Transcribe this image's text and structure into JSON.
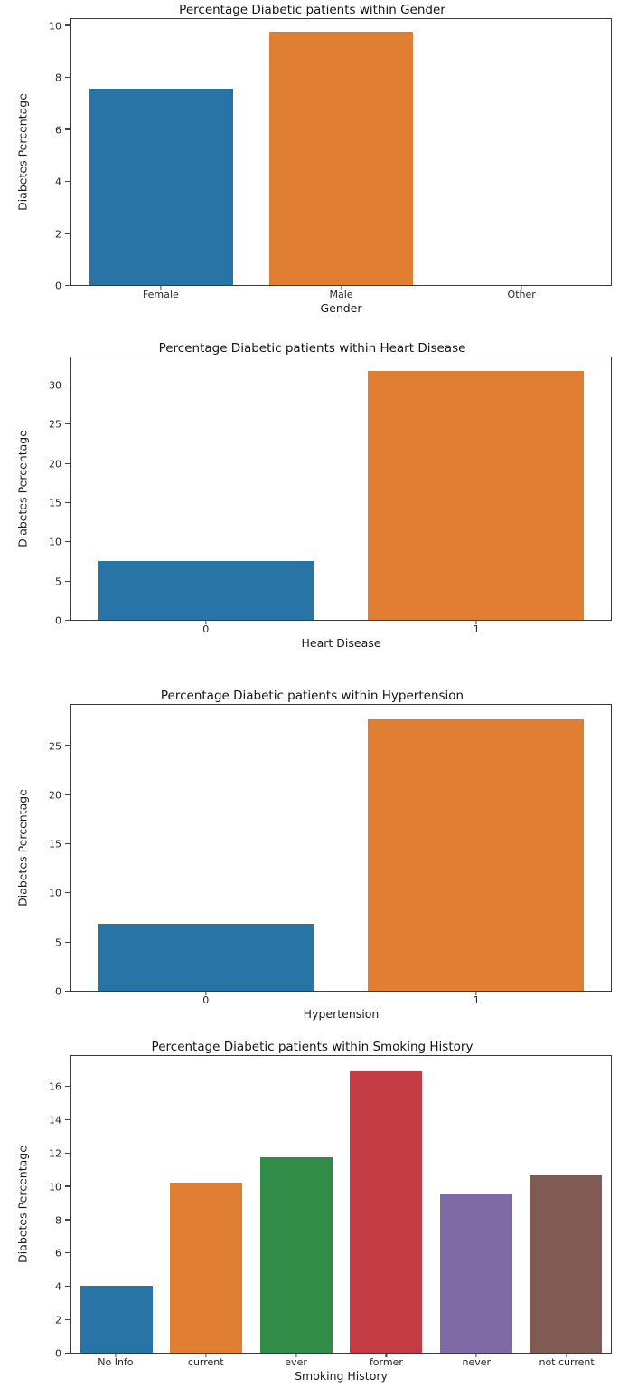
{
  "page": {
    "background": "#ffffff",
    "text_color": "#1c1c1c",
    "axis_color": "#3a3a3a"
  },
  "palette": {
    "blue": "#2874a6",
    "orange": "#e07f33",
    "green": "#318c48",
    "red": "#c33b43",
    "purple": "#7e6ba6",
    "brown": "#805b53"
  },
  "chart_data": [
    {
      "type": "bar",
      "title": "Percentage Diabetic patients within Gender",
      "xlabel": "Gender",
      "ylabel": "Diabetes Percentage",
      "categories": [
        "Female",
        "Male",
        "Other"
      ],
      "values": [
        7.6,
        9.8,
        0
      ],
      "bar_colors": [
        "#2874a6",
        "#e07f33",
        "#318c48"
      ],
      "yticks": [
        0,
        2,
        4,
        6,
        8,
        10
      ],
      "ylim": [
        0,
        10.3
      ],
      "grid": false,
      "legend": null
    },
    {
      "type": "bar",
      "title": "Percentage Diabetic patients within Heart Disease",
      "xlabel": "Heart Disease",
      "ylabel": "Diabetes Percentage",
      "categories": [
        "0",
        "1"
      ],
      "values": [
        7.5,
        32.0
      ],
      "bar_colors": [
        "#2874a6",
        "#e07f33"
      ],
      "yticks": [
        0,
        5,
        10,
        15,
        20,
        25,
        30
      ],
      "ylim": [
        0,
        33.7
      ],
      "grid": false,
      "legend": null
    },
    {
      "type": "bar",
      "title": "Percentage Diabetic patients within Hypertension",
      "xlabel": "Hypertension",
      "ylabel": "Diabetes Percentage",
      "categories": [
        "0",
        "1"
      ],
      "values": [
        6.9,
        27.8
      ],
      "bar_colors": [
        "#2874a6",
        "#e07f33"
      ],
      "yticks": [
        0,
        5,
        10,
        15,
        20,
        25
      ],
      "ylim": [
        0,
        29.3
      ],
      "grid": false,
      "legend": null
    },
    {
      "type": "bar",
      "title": "Percentage Diabetic patients within Smoking History",
      "xlabel": "Smoking History",
      "ylabel": "Diabetes Percentage",
      "categories": [
        "No Info",
        "current",
        "ever",
        "former",
        "never",
        "not current"
      ],
      "values": [
        4.05,
        10.25,
        11.8,
        16.95,
        9.55,
        10.7
      ],
      "bar_colors": [
        "#2874a6",
        "#e07f33",
        "#318c48",
        "#c33b43",
        "#7e6ba6",
        "#805b53"
      ],
      "yticks": [
        0,
        2,
        4,
        6,
        8,
        10,
        12,
        14,
        16
      ],
      "ylim": [
        0,
        17.9
      ],
      "grid": false,
      "legend": null
    }
  ]
}
